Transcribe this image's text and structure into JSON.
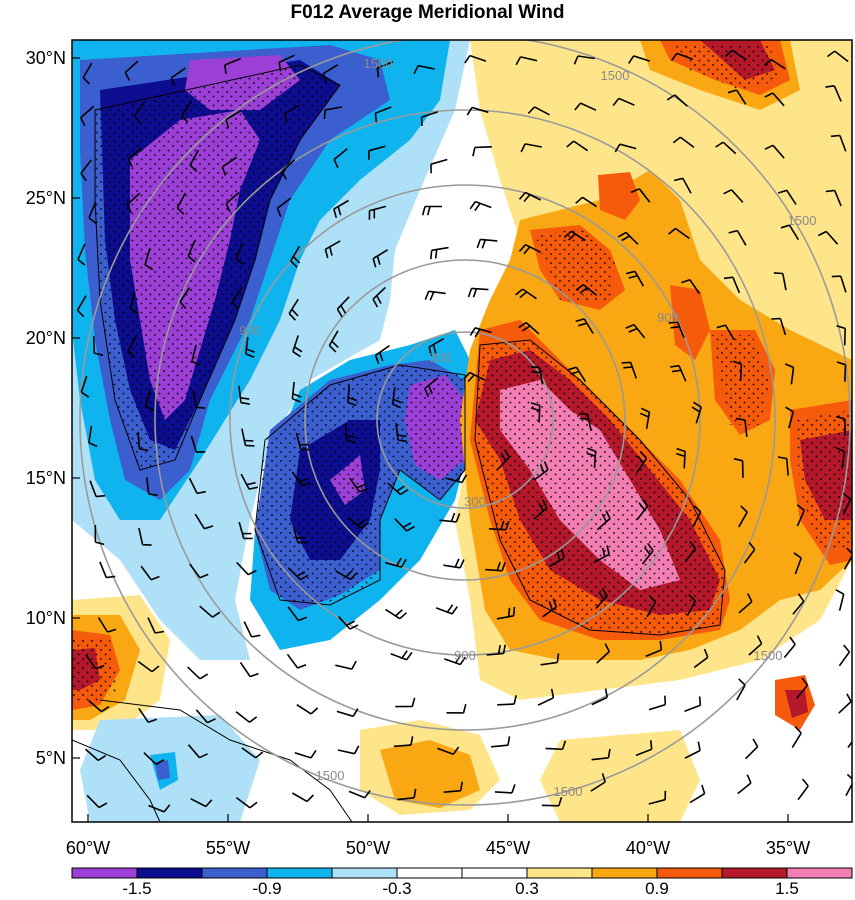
{
  "title": "F012 Average Meridional Wind",
  "lat_ticks": [
    "30°N",
    "25°N",
    "20°N",
    "15°N",
    "10°N",
    "5°N"
  ],
  "lon_ticks": [
    "60°W",
    "55°W",
    "50°W",
    "45°W",
    "40°W",
    "35°W"
  ],
  "colorbar": {
    "colors": [
      "#9b3fd6",
      "#0c0d8f",
      "#3c5fd0",
      "#0fb4ef",
      "#aee0f7",
      "#ffffff",
      "#ffffff",
      "#ffe58a",
      "#f9a713",
      "#f65b0c",
      "#b5182a",
      "#f37eb4"
    ],
    "labels": [
      "-1.5",
      "-0.9",
      "-0.3",
      "0.3",
      "0.9",
      "1.5"
    ]
  },
  "range_ring_labels": [
    "300",
    "300",
    "900",
    "900",
    "900",
    "1500",
    "1500",
    "1500",
    "1500",
    "1500",
    "1500"
  ]
}
